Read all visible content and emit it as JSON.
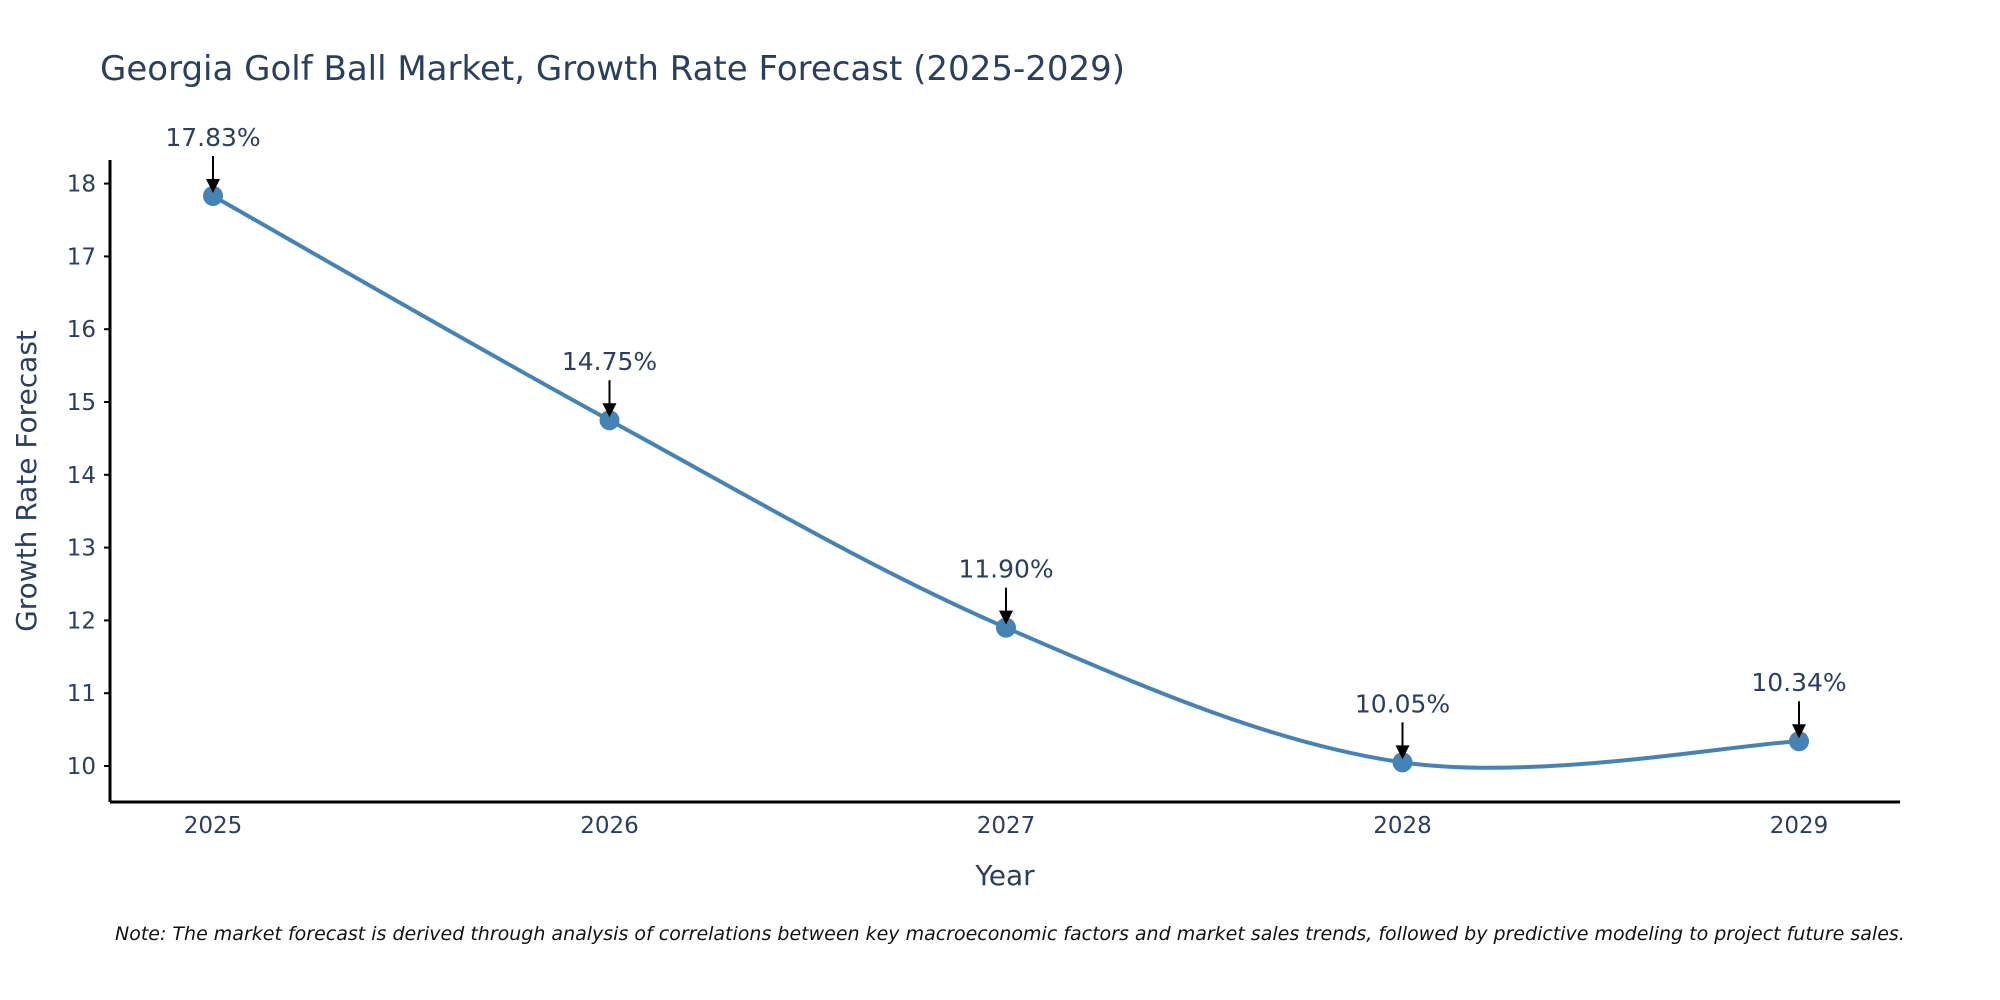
{
  "chart_data": {
    "type": "line",
    "title": "Georgia Golf Ball Market, Growth Rate Forecast (2025-2029)",
    "xlabel": "Year",
    "ylabel": "Growth Rate Forecast",
    "categories": [
      "2025",
      "2026",
      "2027",
      "2028",
      "2029"
    ],
    "series": [
      {
        "name": "Growth Rate Forecast",
        "values": [
          17.83,
          14.75,
          11.9,
          10.05,
          10.34
        ],
        "labels": [
          "17.83%",
          "14.75%",
          "11.90%",
          "10.05%",
          "10.34%"
        ],
        "color": "#4682b4"
      }
    ],
    "yticks": [
      "10",
      "11",
      "12",
      "13",
      "14",
      "15",
      "16",
      "17",
      "18"
    ],
    "ylim": [
      9.5,
      18.3
    ],
    "grid": false,
    "note": "Note: The market forecast is derived through analysis of correlations between key macroeconomic factors and market sales trends, followed by predictive modeling to project future sales."
  }
}
